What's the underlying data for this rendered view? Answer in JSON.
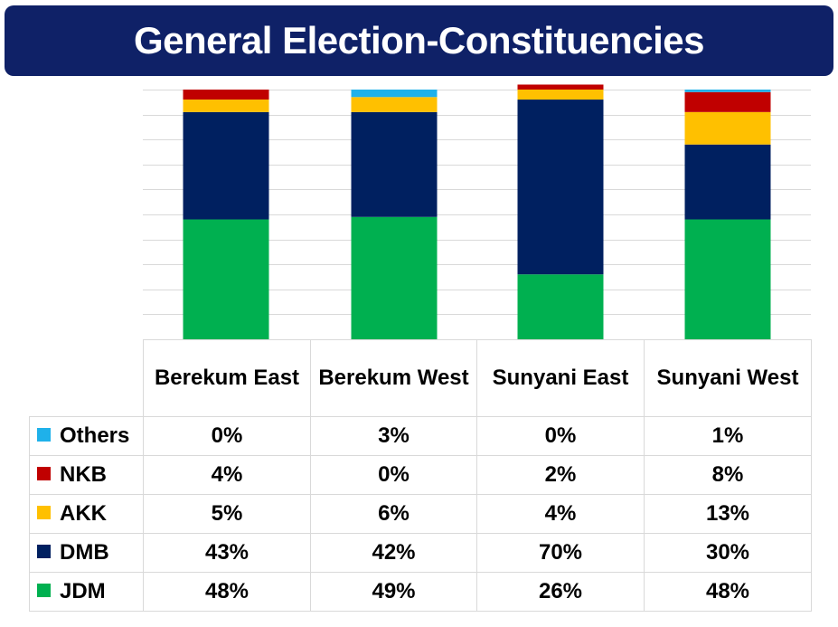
{
  "title": "General Election-Constituencies",
  "colors": {
    "title_bg": "#0f2167",
    "Others": "#1fb1ea",
    "NKB": "#c00000",
    "AKK": "#ffc000",
    "DMB": "#002060",
    "JDM": "#00b050",
    "grid": "#d9d9d9"
  },
  "chart_data": {
    "type": "bar",
    "stacked": true,
    "grid": true,
    "ylim": [
      0,
      100
    ],
    "legend": "data-table",
    "categories": [
      "Berekum East",
      "Berekum West",
      "Sunyani East",
      "Sunyani West"
    ],
    "series": [
      {
        "name": "Others",
        "values": [
          0,
          3,
          0,
          1
        ],
        "labels": [
          "0%",
          "3%",
          "0%",
          "1%"
        ]
      },
      {
        "name": "NKB",
        "values": [
          4,
          0,
          2,
          8
        ],
        "labels": [
          "4%",
          "0%",
          "2%",
          "8%"
        ]
      },
      {
        "name": "AKK",
        "values": [
          5,
          6,
          4,
          13
        ],
        "labels": [
          "5%",
          "6%",
          "4%",
          "13%"
        ]
      },
      {
        "name": "DMB",
        "values": [
          43,
          42,
          70,
          30
        ],
        "labels": [
          "43%",
          "42%",
          "70%",
          "30%"
        ]
      },
      {
        "name": "JDM",
        "values": [
          48,
          49,
          26,
          48
        ],
        "labels": [
          "48%",
          "49%",
          "26%",
          "48%"
        ]
      }
    ]
  }
}
